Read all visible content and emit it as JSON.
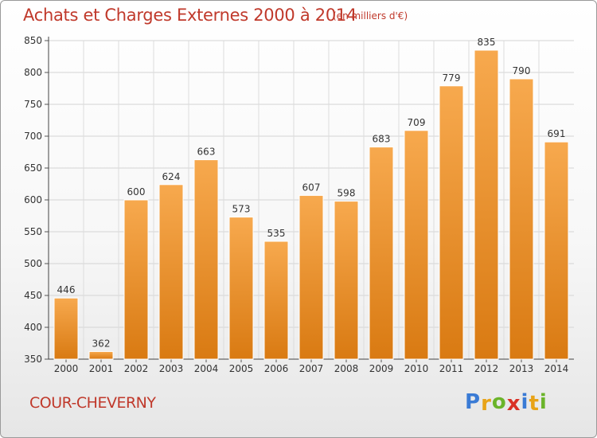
{
  "title": "Achats et Charges Externes 2000 à 2014",
  "unit": "(en milliers d'€)",
  "place": "COUR-CHEVERNY",
  "logo": {
    "letters": [
      "P",
      "r",
      "o",
      "x",
      "i",
      "t",
      "i"
    ],
    "colors": [
      "#3a7bd5",
      "#e8a317",
      "#6bb42a",
      "#d93025",
      "#3a7bd5",
      "#e8a317",
      "#6bb42a"
    ]
  },
  "colors": {
    "bar_top": "#f7a94e",
    "bar_bottom": "#d97a12",
    "title": "#c0392b"
  },
  "chart_data": {
    "type": "bar",
    "categories": [
      "2000",
      "2001",
      "2002",
      "2003",
      "2004",
      "2005",
      "2006",
      "2007",
      "2008",
      "2009",
      "2010",
      "2011",
      "2012",
      "2013",
      "2014"
    ],
    "values": [
      446,
      362,
      600,
      624,
      663,
      573,
      535,
      607,
      598,
      683,
      709,
      779,
      835,
      790,
      691
    ],
    "ylim": [
      350,
      850
    ],
    "yticks": [
      350,
      400,
      450,
      500,
      550,
      600,
      650,
      700,
      750,
      800,
      850
    ],
    "grid": true,
    "xlabel": "",
    "ylabel": ""
  }
}
